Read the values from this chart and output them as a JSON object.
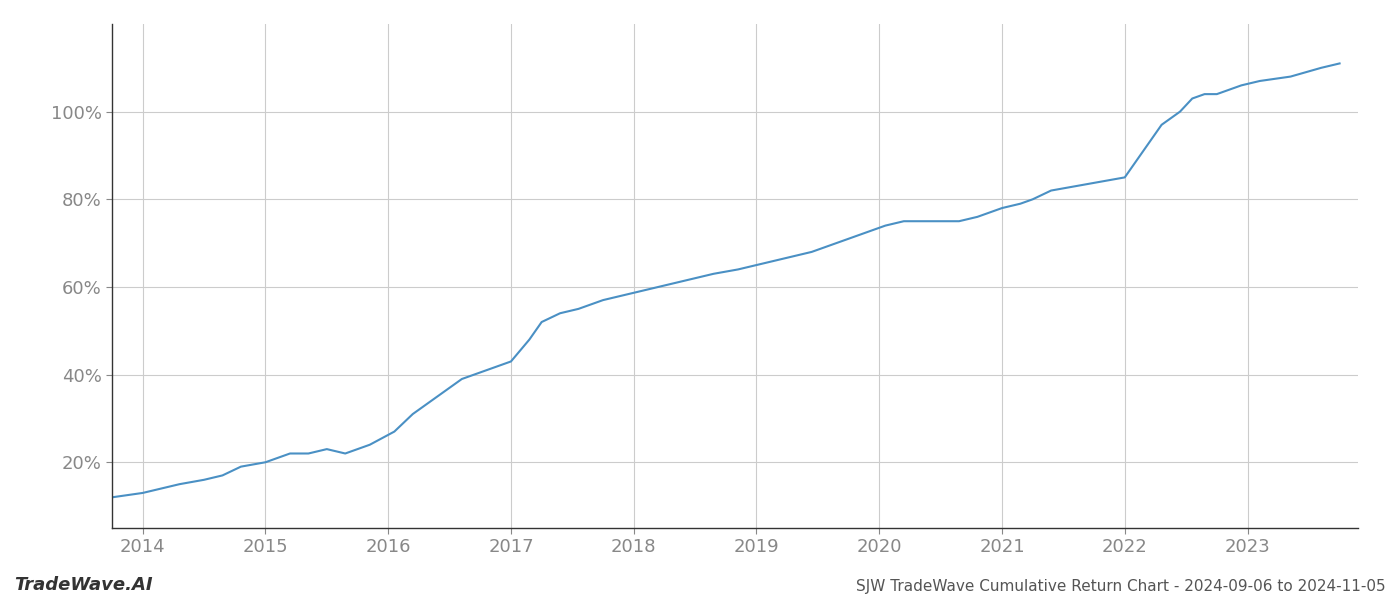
{
  "title": "SJW TradeWave Cumulative Return Chart - 2024-09-06 to 2024-11-05",
  "watermark": "TradeWave.AI",
  "line_color": "#4a90c4",
  "background_color": "#ffffff",
  "grid_color": "#cccccc",
  "x_years": [
    2013.75,
    2014.0,
    2014.15,
    2014.3,
    2014.5,
    2014.65,
    2014.8,
    2015.0,
    2015.1,
    2015.2,
    2015.35,
    2015.5,
    2015.65,
    2015.85,
    2016.05,
    2016.2,
    2016.4,
    2016.6,
    2016.8,
    2017.0,
    2017.15,
    2017.25,
    2017.4,
    2017.55,
    2017.75,
    2017.9,
    2018.05,
    2018.2,
    2018.35,
    2018.5,
    2018.65,
    2018.85,
    2019.0,
    2019.15,
    2019.3,
    2019.45,
    2019.55,
    2019.65,
    2019.75,
    2019.85,
    2019.95,
    2020.05,
    2020.2,
    2020.35,
    2020.5,
    2020.65,
    2020.8,
    2020.9,
    2021.0,
    2021.15,
    2021.25,
    2021.4,
    2021.6,
    2021.8,
    2022.0,
    2022.1,
    2022.2,
    2022.3,
    2022.45,
    2022.55,
    2022.65,
    2022.75,
    2022.85,
    2022.95,
    2023.1,
    2023.35,
    2023.6,
    2023.75
  ],
  "y_values": [
    12,
    13,
    14,
    15,
    16,
    17,
    19,
    20,
    21,
    22,
    22,
    23,
    22,
    24,
    27,
    31,
    35,
    39,
    41,
    43,
    48,
    52,
    54,
    55,
    57,
    58,
    59,
    60,
    61,
    62,
    63,
    64,
    65,
    66,
    67,
    68,
    69,
    70,
    71,
    72,
    73,
    74,
    75,
    75,
    75,
    75,
    76,
    77,
    78,
    79,
    80,
    82,
    83,
    84,
    85,
    89,
    93,
    97,
    100,
    103,
    104,
    104,
    105,
    106,
    107,
    108,
    110,
    111
  ],
  "xlim": [
    2013.75,
    2023.9
  ],
  "ylim": [
    5,
    120
  ],
  "yticks": [
    20,
    40,
    60,
    80,
    100
  ],
  "ytick_labels": [
    "20%",
    "40%",
    "60%",
    "80%",
    "100%"
  ],
  "xticks": [
    2014,
    2015,
    2016,
    2017,
    2018,
    2019,
    2020,
    2021,
    2022,
    2023
  ],
  "title_fontsize": 11,
  "tick_fontsize": 13,
  "watermark_fontsize": 13,
  "line_width": 1.5
}
